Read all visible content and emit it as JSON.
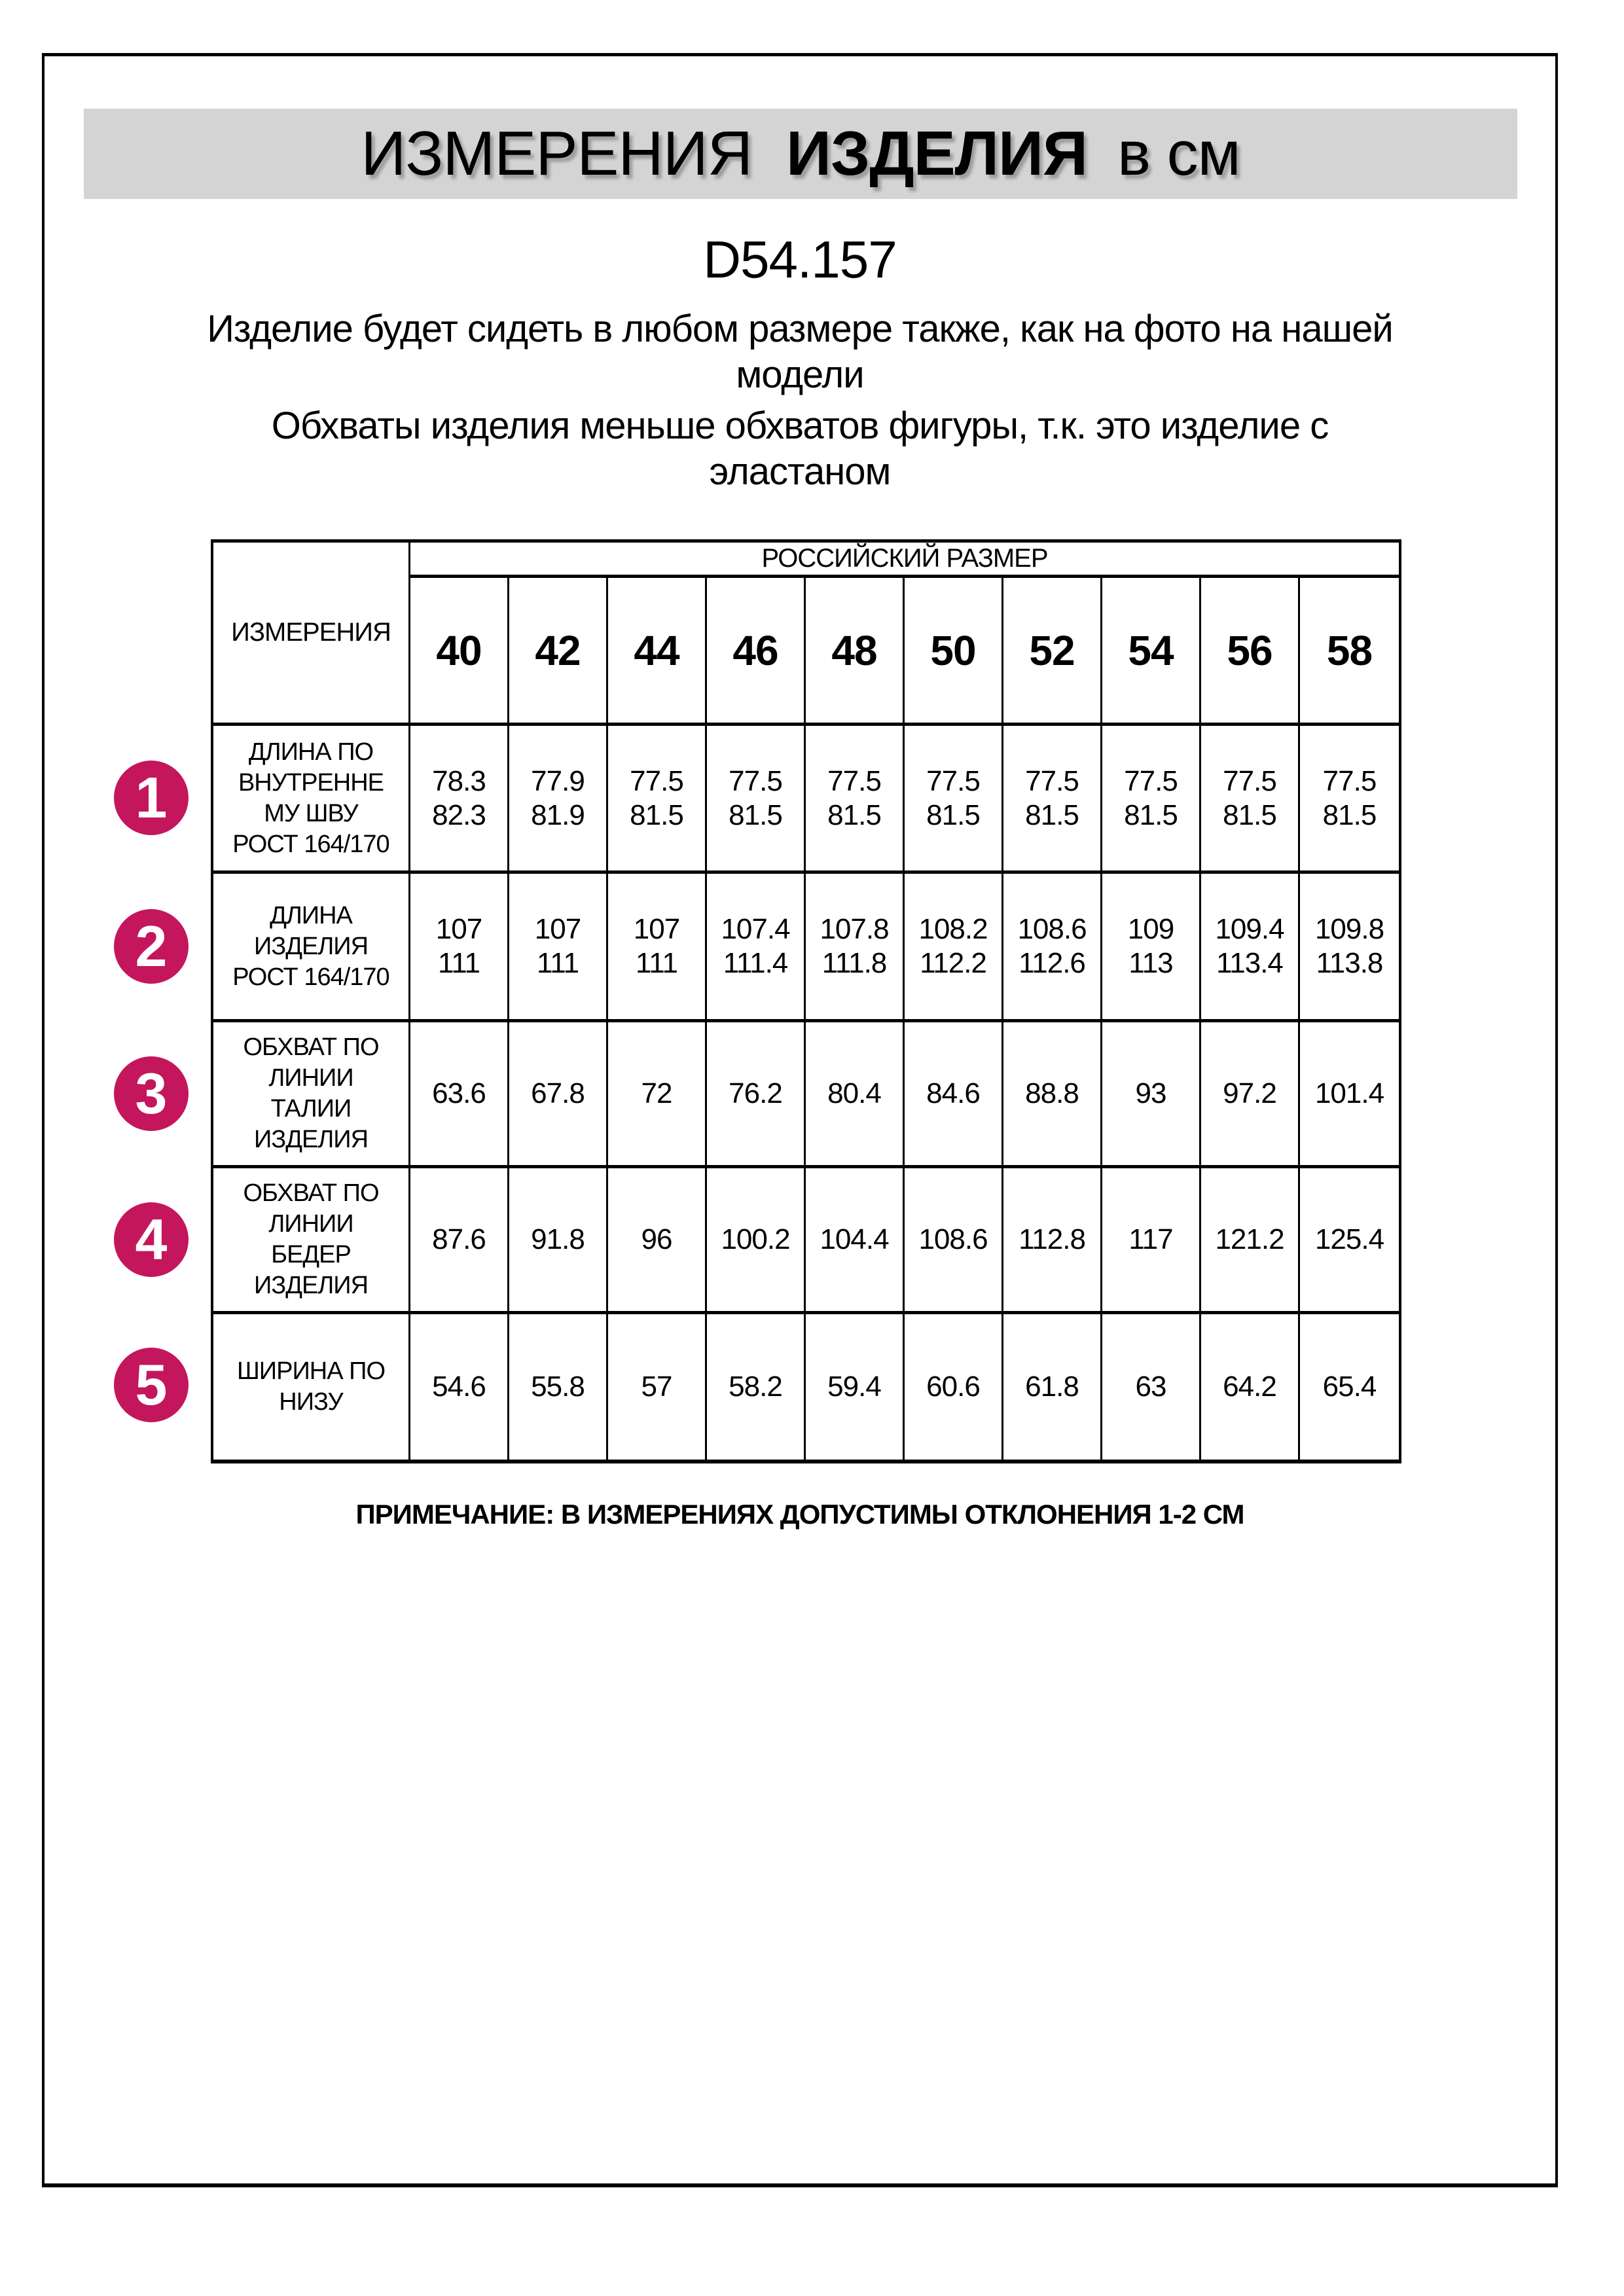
{
  "header": {
    "title_word1": "ИЗМЕРЕНИЯ",
    "title_word2": "ИЗДЕЛИЯ",
    "unit": "в см",
    "product_code": "D54.157"
  },
  "intro": {
    "fit_note": "Изделие будет сидеть в любом размере также, как на фото на нашей модели",
    "elastane_note": "Обхваты изделия меньше обхватов фигуры, т.к. это изделие с эластаном"
  },
  "table": {
    "corner_label": "ИЗМЕРЕНИЯ",
    "size_header": "РОССИЙСКИЙ РАЗМЕР",
    "sizes": [
      "40",
      "42",
      "44",
      "46",
      "48",
      "50",
      "52",
      "54",
      "56",
      "58"
    ],
    "rows": [
      {
        "num": "1",
        "label": "ДЛИНА ПО\nВНУТРЕННЕ\nМУ ШВУ\nРОСТ 164/170",
        "values": [
          "78.3\n82.3",
          "77.9\n81.9",
          "77.5\n81.5",
          "77.5\n81.5",
          "77.5\n81.5",
          "77.5\n81.5",
          "77.5\n81.5",
          "77.5\n81.5",
          "77.5\n81.5",
          "77.5\n81.5"
        ]
      },
      {
        "num": "2",
        "label": "ДЛИНА\nИЗДЕЛИЯ\nРОСТ 164/170",
        "values": [
          "107\n111",
          "107\n111",
          "107\n111",
          "107.4\n111.4",
          "107.8\n111.8",
          "108.2\n112.2",
          "108.6\n112.6",
          "109\n113",
          "109.4\n113.4",
          "109.8\n113.8"
        ]
      },
      {
        "num": "3",
        "label": "ОБХВАТ ПО\nЛИНИИ\nТАЛИИ\nИЗДЕЛИЯ",
        "values": [
          "63.6",
          "67.8",
          "72",
          "76.2",
          "80.4",
          "84.6",
          "88.8",
          "93",
          "97.2",
          "101.4"
        ]
      },
      {
        "num": "4",
        "label": "ОБХВАТ ПО\nЛИНИИ\nБЕДЕР\nИЗДЕЛИЯ",
        "values": [
          "87.6",
          "91.8",
          "96",
          "100.2",
          "104.4",
          "108.6",
          "112.8",
          "117",
          "121.2",
          "125.4"
        ]
      },
      {
        "num": "5",
        "label": "ШИРИНА ПО\nНИЗУ",
        "values": [
          "54.6",
          "55.8",
          "57",
          "58.2",
          "59.4",
          "60.6",
          "61.8",
          "63",
          "64.2",
          "65.4"
        ]
      }
    ]
  },
  "footnote": "ПРИМЕЧАНИЕ: В ИЗМЕРЕНИЯХ ДОПУСТИМЫ ОТКЛОНЕНИЯ 1-2 СМ",
  "colors": {
    "badge": "#C4165C",
    "band": "#D4D4D4"
  }
}
